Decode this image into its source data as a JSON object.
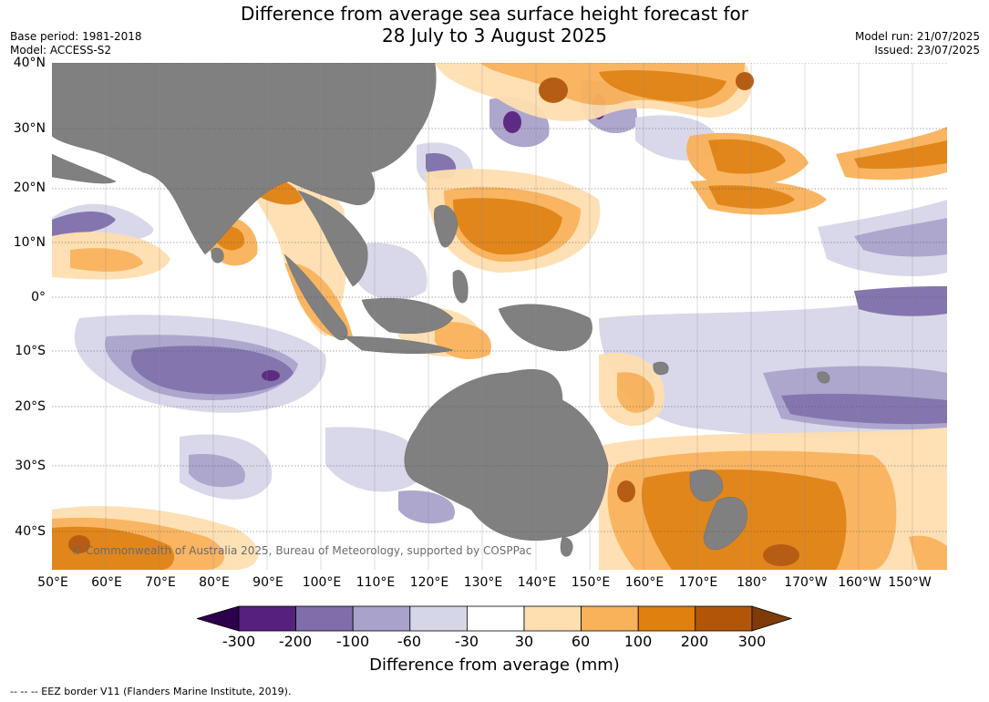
{
  "header": {
    "title_line1": "Difference from average sea surface height forecast for",
    "title_line2": "28 July to 3 August 2025",
    "base_period": "Base period: 1981-2018",
    "model": "Model: ACCESS-S2",
    "model_run": "Model run: 21/07/2025",
    "issued": "Issued: 23/07/2025"
  },
  "map": {
    "lat_labels": [
      "40°N",
      "30°N",
      "20°N",
      "10°N",
      "0°",
      "10°S",
      "20°S",
      "30°S",
      "40°S"
    ],
    "lon_labels": [
      "50°E",
      "60°E",
      "70°E",
      "80°E",
      "90°E",
      "100°E",
      "110°E",
      "120°E",
      "130°E",
      "140°E",
      "150°E",
      "160°E",
      "170°E",
      "180°",
      "170°W",
      "160°W",
      "150°W"
    ],
    "copyright": "© Commonwealth of Australia 2025, Bureau of Meteorology, supported by COSPPac",
    "land_color": "#808080",
    "grid": "dotted"
  },
  "colorbar": {
    "title": "Difference from average (mm)",
    "ticks": [
      "-300",
      "-200",
      "-100",
      "-60",
      "-30",
      "30",
      "60",
      "100",
      "200",
      "300"
    ],
    "colors": [
      "#56207e",
      "#7f6eaa",
      "#a9a2cb",
      "#d6d6e9",
      "#ffffff",
      "#fedfb0",
      "#f9b25a",
      "#e0800f",
      "#b35509"
    ],
    "extend_low": "#2d004b",
    "extend_high": "#7f3b08"
  },
  "footnote": "-- -- -- EEZ border V11 (Flanders Marine Institute, 2019)."
}
